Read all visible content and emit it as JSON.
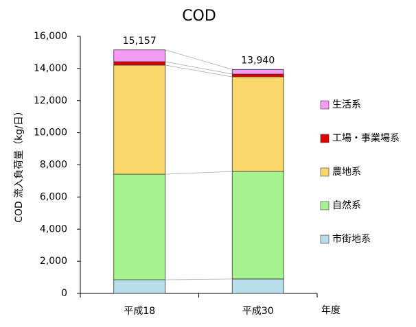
{
  "chart_data": {
    "type": "stacked_bar",
    "title": "COD",
    "ylabel": "COD 流入負荷量（kg/日）",
    "xlabel": "年度",
    "categories": [
      "平成18",
      "平成30"
    ],
    "series": [
      {
        "name": "市街地系",
        "color": "#b7dde8",
        "values": [
          850,
          900
        ]
      },
      {
        "name": "自然系",
        "color": "#a6f28f",
        "values": [
          6570,
          6690
        ]
      },
      {
        "name": "農地系",
        "color": "#fad76b",
        "values": [
          6790,
          5890
        ]
      },
      {
        "name": "工場・事業場系",
        "color": "#e00000",
        "values": [
          210,
          170
        ]
      },
      {
        "name": "生活系",
        "color": "#f59af5",
        "values": [
          737,
          290
        ]
      }
    ],
    "totals": [
      15157,
      13940
    ],
    "total_labels": [
      "15,157",
      "13,940"
    ],
    "ylim": [
      0,
      16000
    ],
    "yticks": [
      0,
      {
        "value": 2000,
        "label": "2,000"
      },
      {
        "value": 4000,
        "label": "4,000"
      },
      {
        "value": 6000,
        "label": "6,000"
      },
      {
        "value": 8000,
        "label": "8,000"
      },
      {
        "value": 10000,
        "label": "10,000"
      },
      {
        "value": 12000,
        "label": "12,000"
      },
      {
        "value": 14000,
        "label": "14,000"
      },
      {
        "value": 16000,
        "label": "16,000"
      }
    ],
    "legend": "right"
  }
}
